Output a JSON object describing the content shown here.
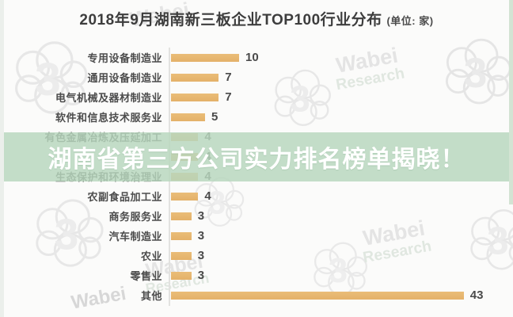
{
  "title": {
    "main": "2018年9月湖南新三板企业TOP100行业分布",
    "unit": "(单位: 家)"
  },
  "banner": {
    "text": "湖南省第三方公司实力排名榜单揭晓！"
  },
  "watermark": {
    "brand": "Wabei",
    "sub": "Research",
    "logo_name": "wabei-cloud-3-logo"
  },
  "colors": {
    "bar": "#e4b169",
    "banner_bg": "#b7d6bd",
    "banner_text": "#ffffff",
    "title_text": "#3d3d3d",
    "label_text": "#4c4c4c"
  },
  "chart_data": {
    "type": "bar",
    "orientation": "horizontal",
    "title": "2018年9月湖南新三板企业TOP100行业分布",
    "unit_label": "(单位: 家)",
    "categories": [
      "专用设备制造业",
      "通用设备制造业",
      "电气机械及器材制造业",
      "软件和信息技术服务业",
      "有色金属冶炼及压延加工",
      "",
      "生态保护和环境治理业",
      "农副食品加工业",
      "商务服务业",
      "汽车制造业",
      "农业",
      "零售业",
      "其他"
    ],
    "values": [
      10,
      7,
      7,
      5,
      4,
      4,
      4,
      4,
      3,
      3,
      3,
      3,
      43
    ],
    "xlim": [
      0,
      45
    ],
    "grid": false,
    "legend": false,
    "value_labels": true
  }
}
